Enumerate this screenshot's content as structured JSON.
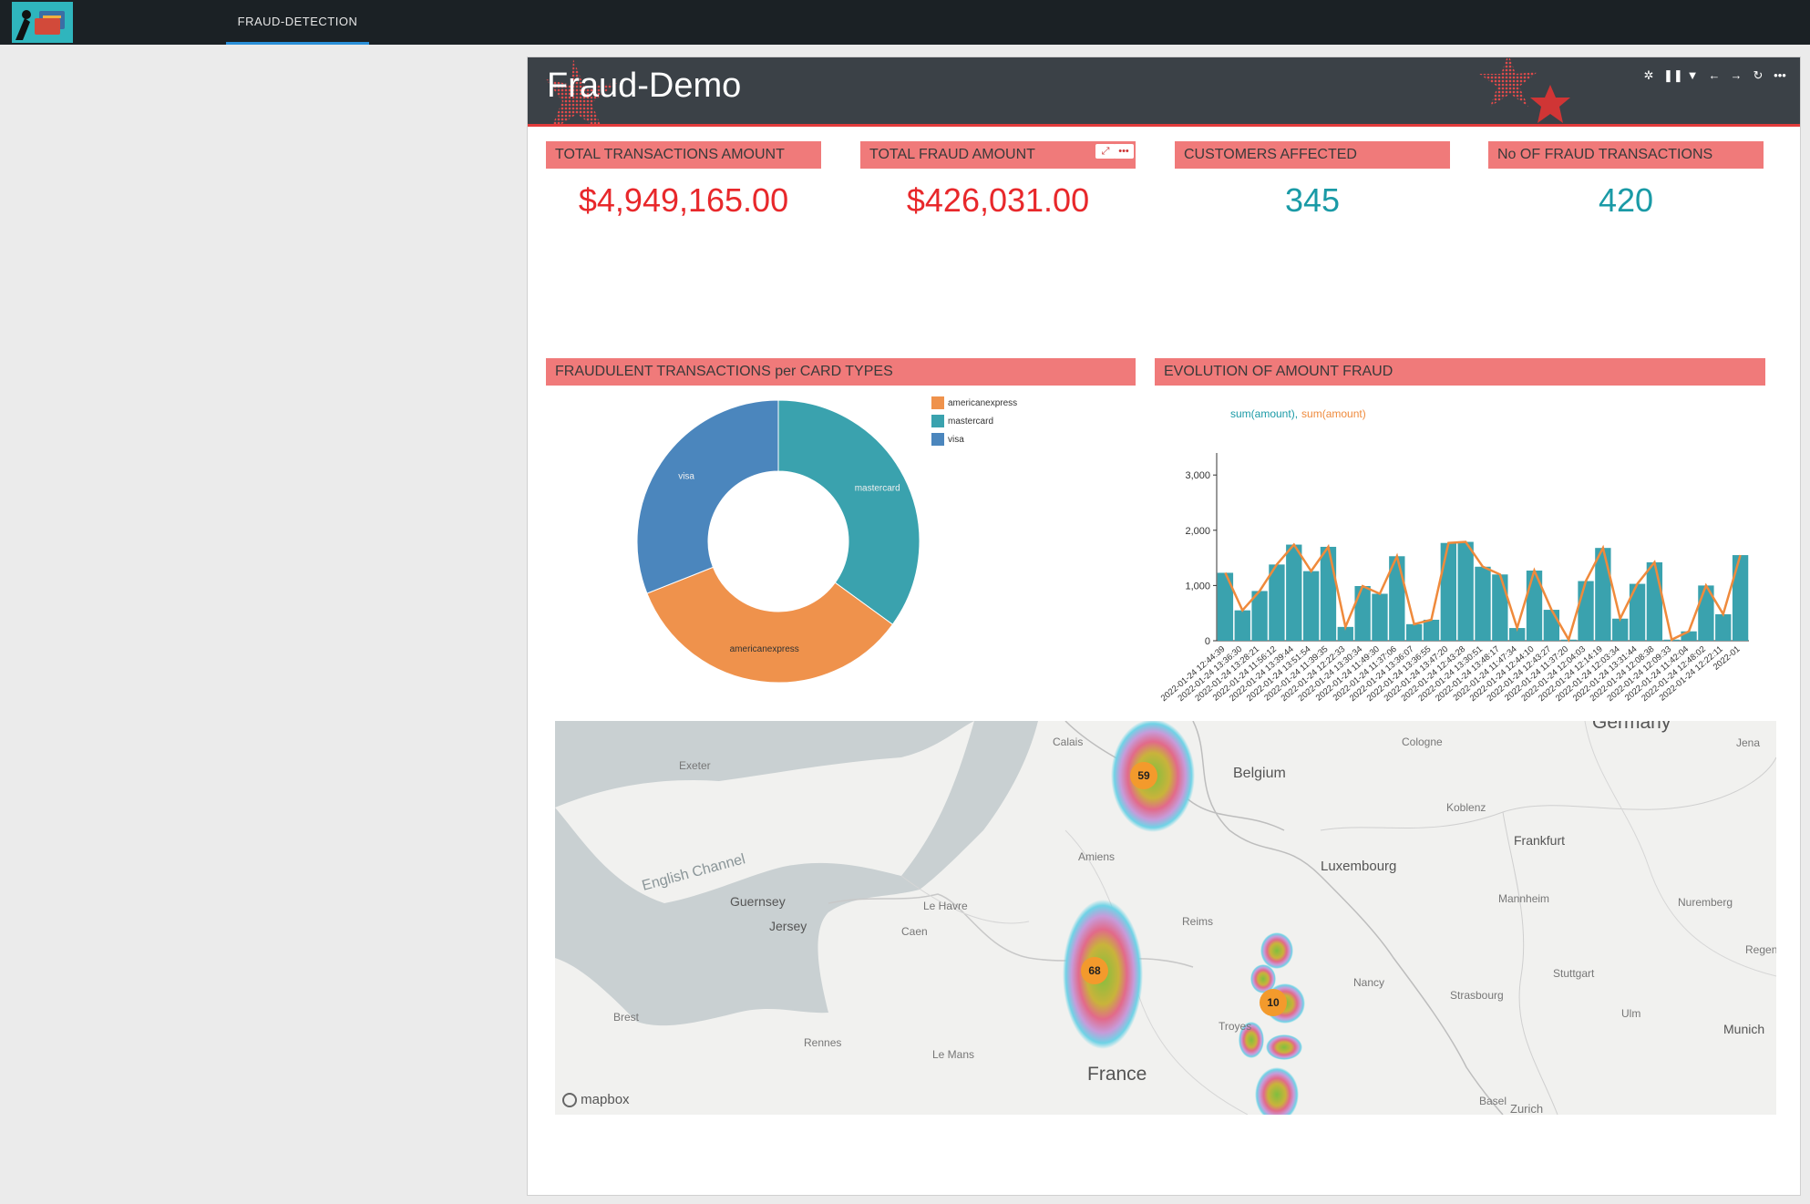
{
  "nav": {
    "tab_label": "FRAUD-DETECTION"
  },
  "dashboard": {
    "title": "Fraud-Demo",
    "tools": [
      "refresh-interval-icon",
      "pause-icon",
      "filter-icon",
      "back-icon",
      "forward-icon",
      "reload-icon",
      "more-icon"
    ]
  },
  "kpis": [
    {
      "title": "TOTAL TRANSACTIONS AMOUNT",
      "value": "$4,949,165.00",
      "color": "#e8282b"
    },
    {
      "title": "TOTAL FRAUD AMOUNT",
      "value": "$426,031.00",
      "color": "#e8282b"
    },
    {
      "title": "CUSTOMERS AFFECTED",
      "value": "345",
      "color": "#1a9aa6"
    },
    {
      "title": "No OF FRAUD TRANSACTIONS",
      "value": "420",
      "color": "#1a9aa6"
    }
  ],
  "donut": {
    "title": "FRAUDULENT TRANSACTIONS per CARD TYPES",
    "legend": [
      {
        "label": "americanexpress",
        "color": "#ef924c"
      },
      {
        "label": "mastercard",
        "color": "#3aa2ae"
      },
      {
        "label": "visa",
        "color": "#4b86bd"
      }
    ]
  },
  "bar": {
    "title": "EVOLUTION OF AMOUNT FRAUD",
    "series_label_1": "sum(amount)",
    "series_label_sep": ",",
    "series_label_2": "sum(amount)"
  },
  "map": {
    "labels": {
      "calais": "Calais",
      "exeter": "Exeter",
      "belgium": "Belgium",
      "cologne": "Cologne",
      "germany": "Germany",
      "jena": "Jena",
      "koblenz": "Koblenz",
      "amiens": "Amiens",
      "english_channel": "English Channel",
      "frankfurt": "Frankfurt",
      "luxembourg": "Luxembourg",
      "guernsey": "Guernsey",
      "le_havre": "Le Havre",
      "mannheim": "Mannheim",
      "nuremberg": "Nuremberg",
      "jersey": "Jersey",
      "caen": "Caen",
      "reims": "Reims",
      "regen": "Regen",
      "stuttgart": "Stuttgart",
      "nancy": "Nancy",
      "strasbourg": "Strasbourg",
      "brest": "Brest",
      "troyes": "Troyes",
      "ulm": "Ulm",
      "munich": "Munich",
      "rennes": "Rennes",
      "le_mans": "Le Mans",
      "france": "France",
      "basel": "Basel",
      "zurich": "Zurich"
    },
    "clusters": [
      "59",
      "68",
      "10"
    ],
    "attribution": "mapbox"
  },
  "chart_data": [
    {
      "type": "pie",
      "title": "FRAUDULENT TRANSACTIONS per CARD TYPES",
      "categories": [
        "mastercard",
        "americanexpress",
        "visa"
      ],
      "values": [
        35,
        34,
        31
      ],
      "colors": [
        "#3aa2ae",
        "#ef924c",
        "#4b86bd"
      ],
      "legend": "top-right"
    },
    {
      "type": "bar",
      "title": "EVOLUTION OF AMOUNT FRAUD",
      "series": [
        {
          "name": "sum(amount)",
          "kind": "bar",
          "color": "#3aa2ae"
        },
        {
          "name": "sum(amount)",
          "kind": "line",
          "color": "#ef8a3c"
        }
      ],
      "values": [
        1230,
        550,
        900,
        1380,
        1740,
        1260,
        1700,
        250,
        990,
        850,
        1530,
        300,
        380,
        1770,
        1790,
        1340,
        1200,
        230,
        1270,
        560,
        20,
        1080,
        1680,
        400,
        1030,
        1420,
        20,
        170,
        1000,
        480,
        1550
      ],
      "categories": [
        "2022-01-24 12:44:39",
        "2022-01-24 13:36:30",
        "2022-01-24 13:28:21",
        "2022-01-24 11:56:12",
        "2022-01-24 13:39:44",
        "2022-01-24 13:51:54",
        "2022-01-24 11:39:35",
        "2022-01-24 12:22:33",
        "2022-01-24 13:30:34",
        "2022-01-24 11:49:30",
        "2022-01-24 11:37:06",
        "2022-01-24 13:36:07",
        "2022-01-24 13:36:55",
        "2022-01-24 13:47:20",
        "2022-01-24 12:43:28",
        "2022-01-24 13:30:51",
        "2022-01-24 13:48:17",
        "2022-01-24 11:47:34",
        "2022-01-24 12:44:10",
        "2022-01-24 12:43:27",
        "2022-01-24 11:37:20",
        "2022-01-24 12:04:03",
        "2022-01-24 12:14:19",
        "2022-01-24 12:03:34",
        "2022-01-24 13:31:44",
        "2022-01-24 12:08:38",
        "2022-01-24 12:09:33",
        "2022-01-24 11:42:04",
        "2022-01-24 12:48:02",
        "2022-01-24 12:22:11",
        "2022-01"
      ],
      "yticks": [
        "0",
        "1,000",
        "2,000",
        "3,000"
      ],
      "ylim": [
        0,
        3300
      ]
    }
  ]
}
